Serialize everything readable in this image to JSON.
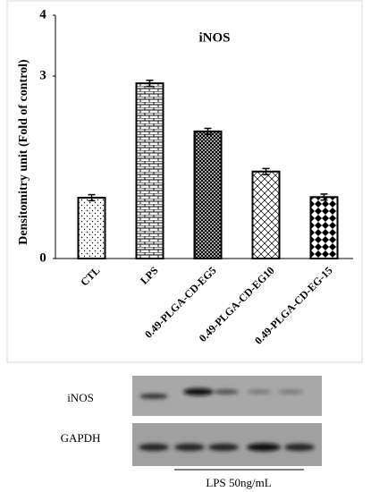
{
  "chart_data": {
    "type": "bar",
    "title": "iNOS",
    "y_label": "Densitomitry unit (Fold of control)",
    "categories": [
      "CTL",
      "LPS",
      "0.49-PLGA-CD-EG5",
      "0.49-PLGA-CD-EG10",
      "0.49-PLGA-CD-EG-15"
    ],
    "values": [
      1.0,
      2.88,
      2.09,
      1.43,
      1.01
    ],
    "errors": [
      0.05,
      0.05,
      0.05,
      0.05,
      0.05
    ],
    "color": "#000000",
    "ylim": [
      0,
      4
    ],
    "yticks": [
      0,
      3,
      4
    ],
    "grid": false
  },
  "blot": {
    "labels": [
      "iNOS",
      "GAPDH"
    ],
    "treatment": "LPS 50ng/mL"
  }
}
